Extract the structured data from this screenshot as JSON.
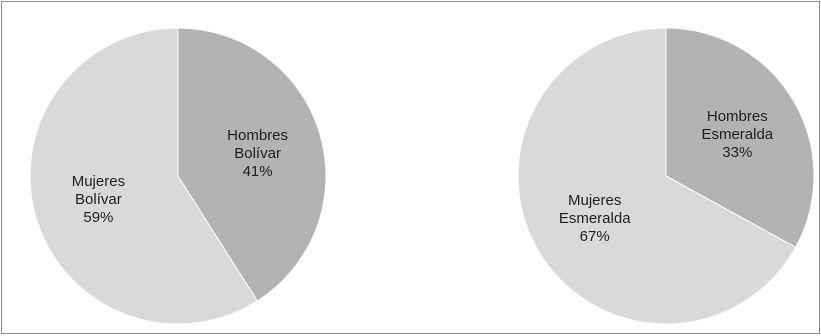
{
  "chart_data": [
    {
      "type": "pie",
      "slices": [
        {
          "category": "Hombres",
          "group": "Bolívar",
          "label_lines": [
            "Hombres",
            "Bolívar",
            "41%"
          ],
          "value": 41,
          "color": "#b3b3b3"
        },
        {
          "category": "Mujeres",
          "group": "Bolívar",
          "label_lines": [
            "Mujeres",
            "Bolívar",
            "59%"
          ],
          "value": 59,
          "color": "#d9d9d9"
        }
      ]
    },
    {
      "type": "pie",
      "slices": [
        {
          "category": "Hombres",
          "group": "Esmeralda",
          "label_lines": [
            "Hombres",
            "Esmeralda",
            "33%"
          ],
          "value": 33,
          "color": "#b3b3b3"
        },
        {
          "category": "Mujeres",
          "group": "Esmeralda",
          "label_lines": [
            "Mujeres",
            "Esmeralda",
            "67%"
          ],
          "value": 67,
          "color": "#d9d9d9"
        }
      ]
    }
  ]
}
